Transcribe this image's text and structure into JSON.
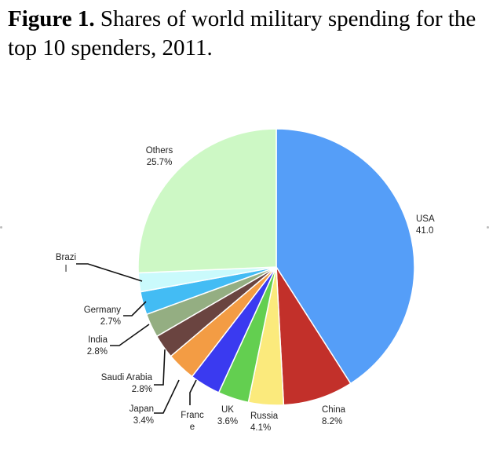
{
  "caption": {
    "label": "Figure 1.",
    "text": "Shares of world military spending for the top 10 spenders, 2011."
  },
  "chart_data": {
    "type": "pie",
    "title": "Shares of world military spending for the top 10 spenders, 2011.",
    "start_angle_deg": 0,
    "direction": "clockwise",
    "slices": [
      {
        "name": "USA",
        "label_lines": [
          "USA",
          "41.0"
        ],
        "value": 41.0,
        "color": "#559ef8"
      },
      {
        "name": "China",
        "label_lines": [
          "China",
          "8.2%"
        ],
        "value": 8.2,
        "color": "#c2302a"
      },
      {
        "name": "Russia",
        "label_lines": [
          "Russia",
          "4.1%"
        ],
        "value": 4.1,
        "color": "#fbea7c"
      },
      {
        "name": "UK",
        "label_lines": [
          "UK",
          "3.6%"
        ],
        "value": 3.6,
        "color": "#63cf50"
      },
      {
        "name": "France",
        "label_lines": [
          "Franc",
          "e"
        ],
        "value": 3.6,
        "color": "#3a3af0"
      },
      {
        "name": "Japan",
        "label_lines": [
          "Japan",
          "3.4%"
        ],
        "value": 3.4,
        "color": "#f39c44"
      },
      {
        "name": "Saudi Arabia",
        "label_lines": [
          "Saudi Arabia",
          "2.8%"
        ],
        "value": 2.8,
        "color": "#6a4440"
      },
      {
        "name": "India",
        "label_lines": [
          "India",
          "2.8%"
        ],
        "value": 2.8,
        "color": "#94ae82"
      },
      {
        "name": "Germany",
        "label_lines": [
          "Germany",
          "2.7%"
        ],
        "value": 2.7,
        "color": "#43bcf4"
      },
      {
        "name": "Brazil",
        "label_lines": [
          "Brazi",
          "l"
        ],
        "value": 2.2,
        "color": "#cafafc"
      },
      {
        "name": "Others",
        "label_lines": [
          "Others",
          "25.7%"
        ],
        "value": 25.7,
        "color": "#cdf8c5"
      }
    ]
  }
}
